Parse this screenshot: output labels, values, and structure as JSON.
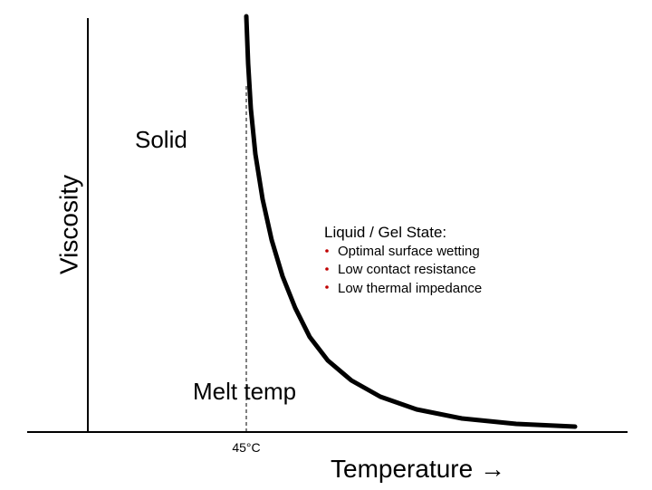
{
  "axes": {
    "y_label": "Viscosity",
    "x_label": "Temperature →"
  },
  "regions": {
    "solid": "Solid",
    "melt": "Melt temp",
    "melt_value": "45°C"
  },
  "liquid": {
    "title": "Liquid / Gel State:",
    "bullets": [
      "Optimal surface wetting",
      "Low contact resistance",
      "Low thermal impedance"
    ]
  }
}
